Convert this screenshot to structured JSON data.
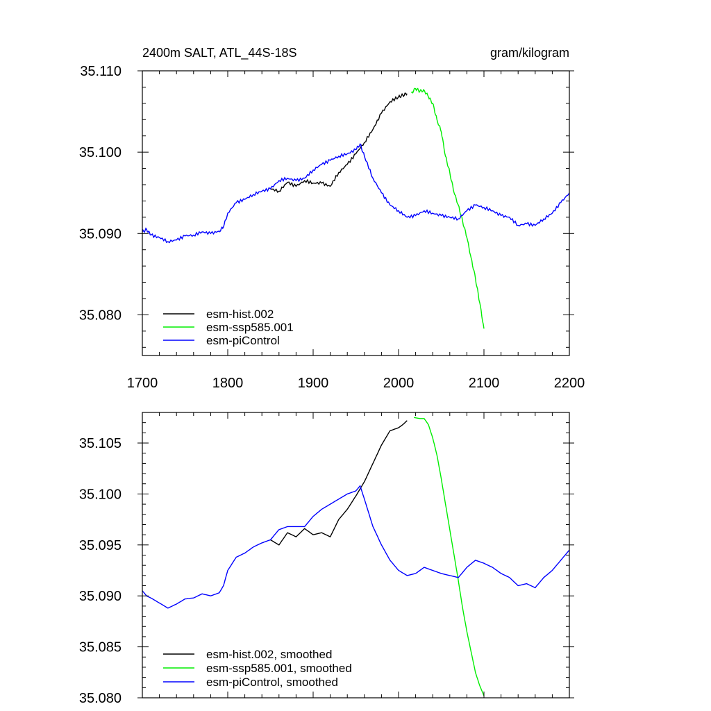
{
  "chart_data": [
    {
      "type": "line",
      "title": "2400m SALT, ATL_44S-18S",
      "units": "gram/kilogram",
      "xlim": [
        1700,
        2200
      ],
      "ylim": [
        35.075,
        35.11
      ],
      "x_ticks": [
        1700,
        1800,
        1900,
        2000,
        2100,
        2200
      ],
      "x_tick_labels": [
        "1700",
        "1800",
        "1900",
        "2000",
        "2100",
        "2200"
      ],
      "y_ticks": [
        35.08,
        35.09,
        35.1,
        35.11
      ],
      "y_tick_labels": [
        "35.080",
        "35.090",
        "35.100",
        "35.110"
      ],
      "legend_position": "bottom-left",
      "series": [
        {
          "name": "esm-hist.002",
          "color": "#000000",
          "x": [
            1850,
            1860,
            1870,
            1880,
            1890,
            1900,
            1910,
            1920,
            1930,
            1940,
            1950,
            1960,
            1970,
            1980,
            1990,
            2000,
            2005,
            2010
          ],
          "y": [
            35.0955,
            35.0952,
            35.0963,
            35.0958,
            35.0965,
            35.0962,
            35.0962,
            35.0958,
            35.0975,
            35.0985,
            35.0998,
            35.1012,
            35.1028,
            35.1048,
            35.1062,
            35.1068,
            35.107,
            35.1072
          ]
        },
        {
          "name": "esm-ssp585.001",
          "color": "#00ee00",
          "x": [
            2015,
            2020,
            2025,
            2030,
            2035,
            2040,
            2045,
            2050,
            2055,
            2060,
            2065,
            2070,
            2075,
            2080,
            2085,
            2090,
            2095,
            2100
          ],
          "y": [
            35.1073,
            35.1078,
            35.1075,
            35.1076,
            35.1068,
            35.106,
            35.104,
            35.1025,
            35.0995,
            35.0975,
            35.095,
            35.0935,
            35.0915,
            35.0895,
            35.087,
            35.0845,
            35.0815,
            35.0783
          ]
        },
        {
          "name": "esm-piControl",
          "color": "#0000ff",
          "x": [
            1700,
            1705,
            1710,
            1720,
            1730,
            1740,
            1750,
            1760,
            1770,
            1780,
            1790,
            1795,
            1800,
            1810,
            1820,
            1830,
            1840,
            1850,
            1860,
            1870,
            1880,
            1890,
            1900,
            1910,
            1920,
            1930,
            1940,
            1950,
            1955,
            1960,
            1970,
            1980,
            1990,
            2000,
            2010,
            2020,
            2030,
            2040,
            2050,
            2060,
            2070,
            2080,
            2090,
            2100,
            2110,
            2120,
            2130,
            2140,
            2150,
            2160,
            2170,
            2180,
            2190,
            2200
          ],
          "y": [
            35.0902,
            35.0905,
            35.0898,
            35.0895,
            35.089,
            35.0892,
            35.0897,
            35.0898,
            35.0902,
            35.09,
            35.0903,
            35.0908,
            35.0925,
            35.0938,
            35.0942,
            35.0948,
            35.0952,
            35.0955,
            35.0965,
            35.0968,
            35.0965,
            35.0968,
            35.0978,
            35.0985,
            35.099,
            35.0995,
            35.0998,
            35.1003,
            35.101,
            35.0995,
            35.0968,
            35.095,
            35.0935,
            35.0928,
            35.092,
            35.0922,
            35.0928,
            35.0925,
            35.0922,
            35.092,
            35.0918,
            35.0928,
            35.0935,
            35.0932,
            35.0928,
            35.0922,
            35.092,
            35.091,
            35.0912,
            35.091,
            35.0918,
            35.0925,
            35.0938,
            35.095
          ]
        }
      ]
    },
    {
      "type": "line",
      "title": "",
      "xlim": [
        1700,
        2200
      ],
      "ylim": [
        35.08,
        35.108
      ],
      "y_ticks": [
        35.08,
        35.085,
        35.09,
        35.095,
        35.1,
        35.105
      ],
      "y_tick_labels": [
        "35.080",
        "35.085",
        "35.090",
        "35.095",
        "35.100",
        "35.105"
      ],
      "legend_position": "bottom-left",
      "series": [
        {
          "name": "esm-hist.002, smoothed",
          "color": "#000000",
          "x": [
            1850,
            1860,
            1870,
            1880,
            1890,
            1900,
            1910,
            1920,
            1930,
            1940,
            1950,
            1960,
            1970,
            1980,
            1990,
            2000,
            2005,
            2010
          ],
          "y": [
            35.0955,
            35.095,
            35.0962,
            35.0958,
            35.0966,
            35.096,
            35.0962,
            35.0958,
            35.0975,
            35.0985,
            35.0998,
            35.1012,
            35.103,
            35.1048,
            35.1062,
            35.1065,
            35.1068,
            35.1072
          ]
        },
        {
          "name": "esm-ssp585.001, smoothed",
          "color": "#00ee00",
          "x": [
            2018,
            2025,
            2030,
            2035,
            2040,
            2045,
            2050,
            2055,
            2060,
            2065,
            2070,
            2075,
            2080,
            2085,
            2090,
            2095,
            2100
          ],
          "y": [
            35.1075,
            35.1074,
            35.1074,
            35.1068,
            35.1055,
            35.1038,
            35.1015,
            35.099,
            35.0965,
            35.094,
            35.0915,
            35.0888,
            35.0865,
            35.0845,
            35.0825,
            35.0812,
            35.0802
          ]
        },
        {
          "name": "esm-piControl, smoothed",
          "color": "#0000ff",
          "x": [
            1700,
            1705,
            1710,
            1720,
            1730,
            1740,
            1750,
            1760,
            1770,
            1780,
            1790,
            1795,
            1800,
            1810,
            1820,
            1830,
            1840,
            1850,
            1860,
            1870,
            1880,
            1890,
            1900,
            1910,
            1920,
            1930,
            1940,
            1950,
            1955,
            1960,
            1970,
            1980,
            1990,
            2000,
            2010,
            2020,
            2030,
            2040,
            2050,
            2060,
            2070,
            2080,
            2090,
            2100,
            2110,
            2120,
            2130,
            2140,
            2150,
            2160,
            2170,
            2180,
            2190,
            2200
          ],
          "y": [
            35.0905,
            35.09,
            35.0898,
            35.0893,
            35.0888,
            35.0892,
            35.0897,
            35.0898,
            35.0902,
            35.09,
            35.0903,
            35.091,
            35.0925,
            35.0938,
            35.0942,
            35.0948,
            35.0952,
            35.0955,
            35.0965,
            35.0968,
            35.0968,
            35.0968,
            35.0978,
            35.0985,
            35.099,
            35.0995,
            35.1,
            35.1003,
            35.1008,
            35.0995,
            35.0968,
            35.095,
            35.0935,
            35.0925,
            35.092,
            35.0922,
            35.0928,
            35.0925,
            35.0922,
            35.092,
            35.0918,
            35.0928,
            35.0935,
            35.0932,
            35.0928,
            35.0922,
            35.0918,
            35.091,
            35.0912,
            35.0908,
            35.0918,
            35.0925,
            35.0935,
            35.0945
          ]
        }
      ]
    }
  ]
}
